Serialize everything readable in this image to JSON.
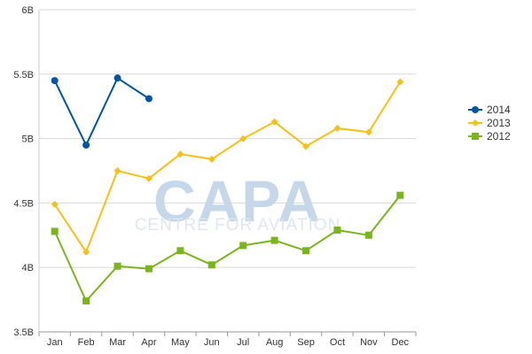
{
  "watermark": {
    "logo_text": "CAPA",
    "sub_text": "CENTRE FOR AVIATION"
  },
  "chart_data": {
    "type": "line",
    "title": "",
    "xlabel": "",
    "ylabel": "",
    "categories": [
      "Jan",
      "Feb",
      "Mar",
      "Apr",
      "May",
      "Jun",
      "Jul",
      "Aug",
      "Sep",
      "Oct",
      "Nov",
      "Dec"
    ],
    "ylim": [
      3.5,
      6.0
    ],
    "yticks": [
      3.5,
      4.0,
      4.5,
      5.0,
      5.5,
      6.0
    ],
    "ytick_labels": [
      "3.5B",
      "4B",
      "4.5B",
      "5B",
      "5.5B",
      "6B"
    ],
    "grid": true,
    "legend_position": "right",
    "series": [
      {
        "name": "2014",
        "color": "#0055a0",
        "marker": "circle",
        "values": [
          5.45,
          4.95,
          5.47,
          5.31,
          null,
          null,
          null,
          null,
          null,
          null,
          null,
          null
        ]
      },
      {
        "name": "2013",
        "color": "#f5c018",
        "marker": "diamond",
        "values": [
          4.49,
          4.12,
          4.75,
          4.69,
          4.88,
          4.84,
          5.0,
          5.13,
          4.94,
          5.08,
          5.05,
          5.44
        ]
      },
      {
        "name": "2012",
        "color": "#7ab51d",
        "marker": "square",
        "values": [
          4.28,
          3.74,
          4.01,
          3.99,
          4.13,
          4.02,
          4.17,
          4.21,
          4.13,
          4.29,
          4.25,
          4.56
        ]
      }
    ]
  }
}
